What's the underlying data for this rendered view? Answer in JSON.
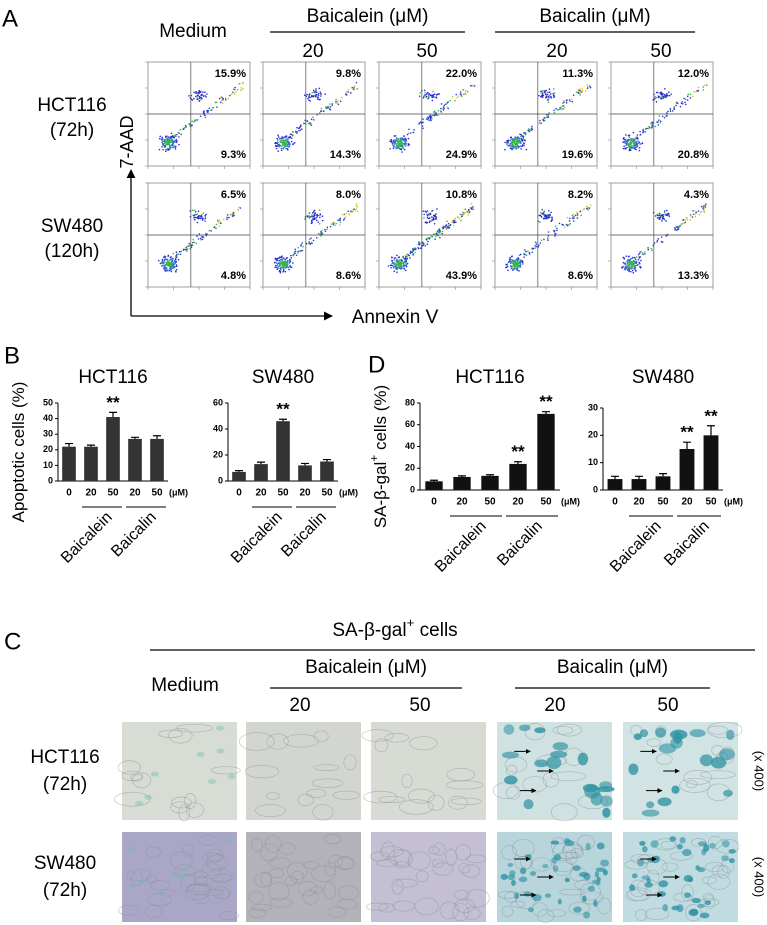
{
  "panels": [
    "A",
    "B",
    "C",
    "D"
  ],
  "flow": {
    "col_header": "Medium",
    "groups": [
      {
        "name": "Baicalein (μM)",
        "doses": [
          "20",
          "50"
        ]
      },
      {
        "name": "Baicalin (μM)",
        "doses": [
          "20",
          "50"
        ]
      }
    ],
    "y_label": "7-AAD",
    "x_label": "Annexin V",
    "rows": [
      {
        "label": [
          "HCT116",
          "(72h)"
        ],
        "upper": [
          "15.9%",
          "9.8%",
          "22.0%",
          "11.3%",
          "12.0%"
        ],
        "lower": [
          "9.3%",
          "14.3%",
          "24.9%",
          "19.6%",
          "20.8%"
        ]
      },
      {
        "label": [
          "SW480",
          "(120h)"
        ],
        "upper": [
          "6.5%",
          "8.0%",
          "10.8%",
          "8.2%",
          "4.3%"
        ],
        "lower": [
          "4.8%",
          "8.6%",
          "43.9%",
          "8.6%",
          "13.3%"
        ]
      }
    ]
  },
  "chart_data": [
    {
      "type": "bar",
      "title": "HCT116",
      "y_label": {
        "text": "Apoptotic cells (%)"
      },
      "categories": [
        "0",
        "20",
        "50",
        "20",
        "50"
      ],
      "unit": "(μM)",
      "groups": [
        "Baicalein",
        "Baicalin"
      ],
      "values": [
        22,
        22,
        41,
        27,
        27
      ],
      "errors": [
        2,
        1,
        3,
        1,
        2
      ],
      "significance": [
        null,
        null,
        "**",
        null,
        null
      ],
      "ylim": [
        0,
        50
      ],
      "yticks": [
        0,
        10,
        20,
        30,
        40,
        50
      ],
      "color": "#333333"
    },
    {
      "type": "bar",
      "title": "SW480",
      "categories": [
        "0",
        "20",
        "50",
        "20",
        "50"
      ],
      "unit": "(μM)",
      "groups": [
        "Baicalein",
        "Baicalin"
      ],
      "values": [
        7,
        13,
        46,
        12,
        15
      ],
      "errors": [
        1,
        1.5,
        1.5,
        1.5,
        1.5
      ],
      "significance": [
        null,
        null,
        "**",
        null,
        null
      ],
      "ylim": [
        0,
        60
      ],
      "yticks": [
        0,
        20,
        40,
        60
      ],
      "color": "#333333"
    },
    {
      "type": "bar",
      "title": "HCT116",
      "y_label": {
        "text": "SA-β-gal",
        "sup": "+",
        "tail": " cells (%)"
      },
      "categories": [
        "0",
        "20",
        "50",
        "20",
        "50"
      ],
      "unit": "(μM)",
      "groups": [
        "Baicalein",
        "Baicalin"
      ],
      "values": [
        8,
        12,
        13,
        24,
        70
      ],
      "errors": [
        1,
        1,
        1,
        2,
        2
      ],
      "significance": [
        null,
        null,
        null,
        "**",
        "**"
      ],
      "ylim": [
        0,
        80
      ],
      "yticks": [
        0,
        20,
        40,
        60,
        80
      ],
      "color": "#111111"
    },
    {
      "type": "bar",
      "title": "SW480",
      "categories": [
        "0",
        "20",
        "50",
        "20",
        "50"
      ],
      "unit": "(μM)",
      "groups": [
        "Baicalein",
        "Baicalin"
      ],
      "values": [
        4,
        4,
        5,
        15,
        20
      ],
      "errors": [
        1,
        1,
        1,
        2.5,
        3.5
      ],
      "significance": [
        null,
        null,
        null,
        "**",
        "**"
      ],
      "ylim": [
        0,
        30
      ],
      "yticks": [
        0,
        10,
        20,
        30
      ],
      "color": "#111111"
    }
  ],
  "micro": {
    "title": {
      "text": "SA-β-gal",
      "sup": "+",
      "tail": " cells"
    },
    "col_header": "Medium",
    "groups": [
      {
        "name": "Baicalein (μM)",
        "doses": [
          "20",
          "50"
        ]
      },
      {
        "name": "Baicalin (μM)",
        "doses": [
          "20",
          "50"
        ]
      }
    ],
    "rows": [
      {
        "label": [
          "HCT116",
          "(72h)"
        ],
        "magnification": "(x 400)"
      },
      {
        "label": [
          "SW480",
          "(72h)"
        ],
        "magnification": "(x 400)"
      }
    ]
  }
}
